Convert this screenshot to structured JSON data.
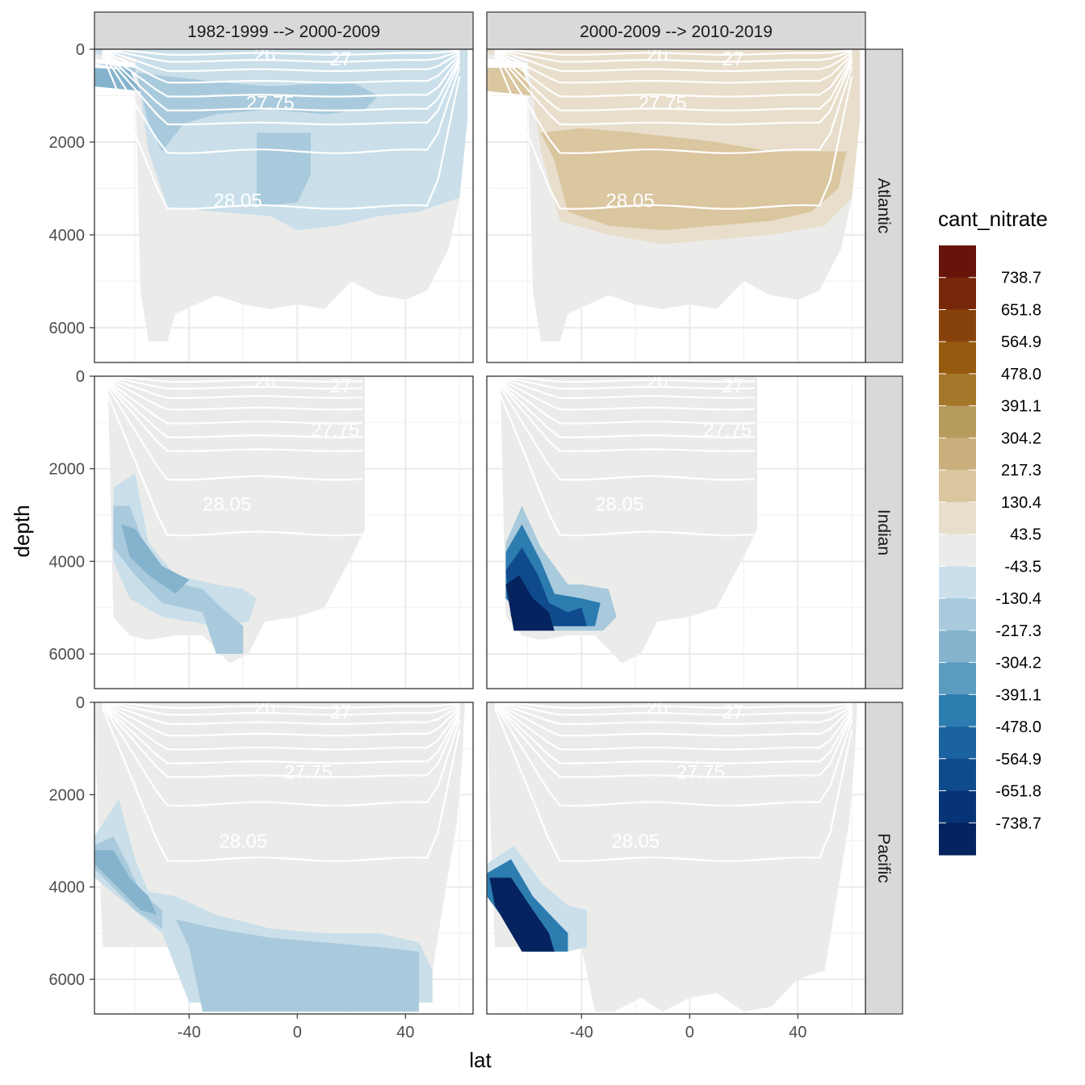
{
  "chart_data": {
    "type": "heatmap",
    "xlabel": "lat",
    "ylabel": "depth",
    "xlim": [
      -75,
      65
    ],
    "ylim": [
      6750,
      0
    ],
    "x_ticks": [
      -40,
      0,
      40
    ],
    "x_tick_labels": [
      "-40",
      "0",
      "40"
    ],
    "y_ticks": [
      0,
      2000,
      4000,
      6000
    ],
    "y_tick_labels": [
      "0",
      "2000",
      "4000",
      "6000"
    ],
    "column_facets": [
      "1982-1999 --> 2000-2009",
      "2000-2009 --> 2010-2019"
    ],
    "row_facets": [
      "Atlantic",
      "Indian",
      "Pacific"
    ],
    "fill_variable": "cant_nitrate",
    "legend": {
      "title": "cant_nitrate",
      "breaks": [
        "738.7",
        "651.8",
        "564.9",
        "478.0",
        "391.1",
        "304.2",
        "217.3",
        "130.4",
        "43.5",
        "-43.5",
        "-130.4",
        "-217.3",
        "-304.2",
        "-391.1",
        "-478.0",
        "-564.9",
        "-651.8",
        "-738.7"
      ],
      "colors": [
        "#67140a",
        "#77280a",
        "#87420c",
        "#975b10",
        "#a5772a",
        "#b79a5d",
        "#c9af7c",
        "#dac69f",
        "#e8decb",
        "#ebecea",
        "#cadfea",
        "#a8cadc",
        "#85b3cd",
        "#5b9bc0",
        "#2c7cb0",
        "#1a62a0",
        "#0f4a8c",
        "#073477",
        "#05235e"
      ]
    },
    "isopycnal_labels": [
      "26",
      "27",
      "27.75",
      "28.05"
    ],
    "series": [
      {
        "name": "Atlantic | 1982-1999 --> 2000-2009",
        "dominant_cant_nitrate": -130.4,
        "note": "widespread weak negative values 0-4000 m"
      },
      {
        "name": "Atlantic | 2000-2009 --> 2010-2019",
        "dominant_cant_nitrate": 130.4,
        "note": "widespread weak positive values 0-4200 m"
      },
      {
        "name": "Indian | 1982-1999 --> 2000-2009",
        "dominant_cant_nitrate": -130.4,
        "note": "weak negative values in southern deep water"
      },
      {
        "name": "Indian | 2000-2009 --> 2010-2019",
        "dominant_cant_nitrate": -738.7,
        "note": "strong negative values near -65 to -40 deep"
      },
      {
        "name": "Pacific | 1982-1999 --> 2000-2009",
        "dominant_cant_nitrate": -217.3,
        "note": "weak negative values in deep layer"
      },
      {
        "name": "Pacific | 2000-2009 --> 2010-2019",
        "dominant_cant_nitrate": -738.7,
        "note": "strong negative values near -70 to -40 deep"
      }
    ]
  }
}
